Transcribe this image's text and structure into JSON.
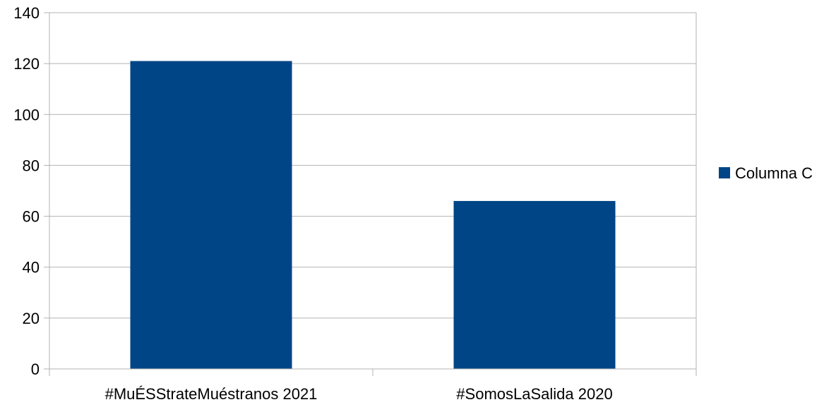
{
  "chart_data": {
    "type": "bar",
    "categories": [
      "#MuÉSStrateMuéstranos 2021",
      "#SomosLaSalida 2020"
    ],
    "series": [
      {
        "name": "Columna C",
        "values": [
          121,
          66
        ],
        "color": "#004586"
      }
    ],
    "ylim": [
      0,
      140
    ],
    "yticks": [
      0,
      20,
      40,
      60,
      80,
      100,
      120,
      140
    ],
    "grid": true,
    "legend_position": "right"
  }
}
